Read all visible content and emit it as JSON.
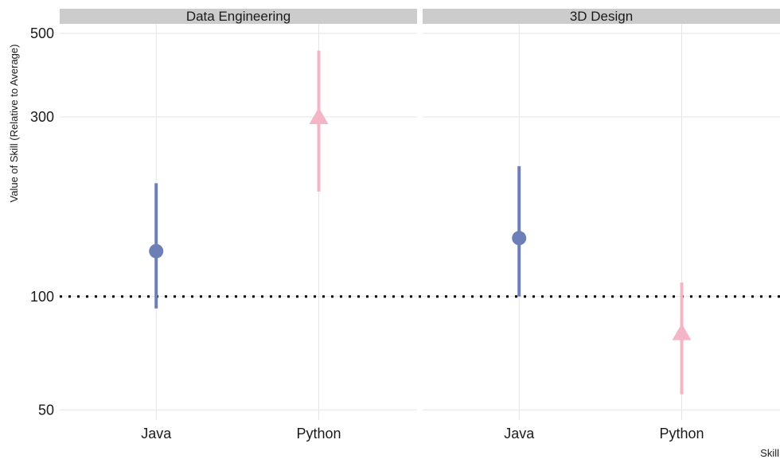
{
  "chart_data": {
    "type": "scatter",
    "subtype": "pointrange-faceted",
    "ylabel": "Value of Skill (Relative to Average)",
    "xlabel": "Skill",
    "yscale": "log",
    "ylim": [
      47,
      530
    ],
    "yticks": [
      50,
      100,
      300,
      500
    ],
    "ytick_labels": [
      "50",
      "100",
      "300",
      "500"
    ],
    "categories": [
      "Java",
      "Python"
    ],
    "reference_line": {
      "value": 100,
      "style": "dotted",
      "color": "#000000"
    },
    "grid": true,
    "legend": "none",
    "facets": [
      {
        "label": "Data Engineering",
        "points": [
          {
            "x": "Java",
            "y": 132,
            "low": 93,
            "high": 200,
            "shape": "circle",
            "color": "#6c7fb6"
          },
          {
            "x": "Python",
            "y": 300,
            "low": 190,
            "high": 450,
            "shape": "triangle",
            "color": "#f4b6c6"
          }
        ]
      },
      {
        "label": "3D Design",
        "points": [
          {
            "x": "Java",
            "y": 143,
            "low": 100,
            "high": 222,
            "shape": "circle",
            "color": "#6c7fb6"
          },
          {
            "x": "Python",
            "y": 80,
            "low": 55,
            "high": 109,
            "shape": "triangle",
            "color": "#f4b6c6"
          }
        ]
      }
    ]
  }
}
